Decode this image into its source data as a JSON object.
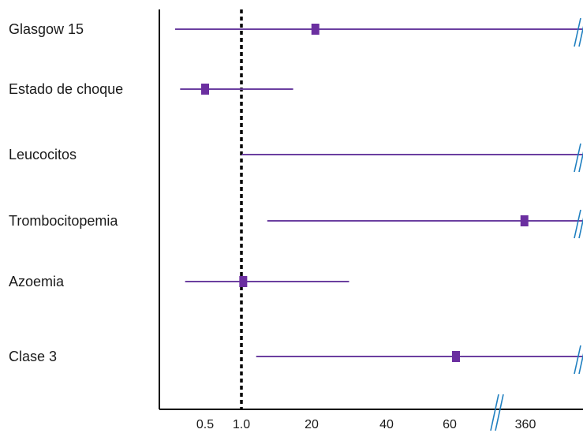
{
  "chart_data": {
    "type": "forest",
    "title": "",
    "xlabel": "",
    "ylabel": "",
    "reference_line": 1.0,
    "x_ticks": [
      "0.5",
      "1.0",
      "20",
      "40",
      "60",
      "360"
    ],
    "axis_break_after": "60",
    "colors": {
      "interval": "#6b3fa0",
      "marker": "#6b2fa0",
      "break": "#1f7fc0",
      "axis": "#000000",
      "reference": "#000000"
    },
    "rows": [
      {
        "label": "Glasgow 15",
        "estimate": 21,
        "lower": 0.2,
        "upper": 360,
        "truncated": true
      },
      {
        "label": "Estado de choque",
        "estimate": 0.5,
        "lower": 0.25,
        "upper": 15,
        "truncated": false
      },
      {
        "label": "Leucocitos",
        "estimate": null,
        "lower": 1.1,
        "upper": 360,
        "truncated": true
      },
      {
        "label": "Trombocitopemia",
        "estimate": 350,
        "lower": 8,
        "upper": 360,
        "truncated": true
      },
      {
        "label": "Azoemia",
        "estimate": 1.5,
        "lower": 0.3,
        "upper": 30,
        "truncated": false
      },
      {
        "label": "Clase 3",
        "estimate": 62,
        "lower": 5,
        "upper": 360,
        "truncated": true
      }
    ]
  }
}
